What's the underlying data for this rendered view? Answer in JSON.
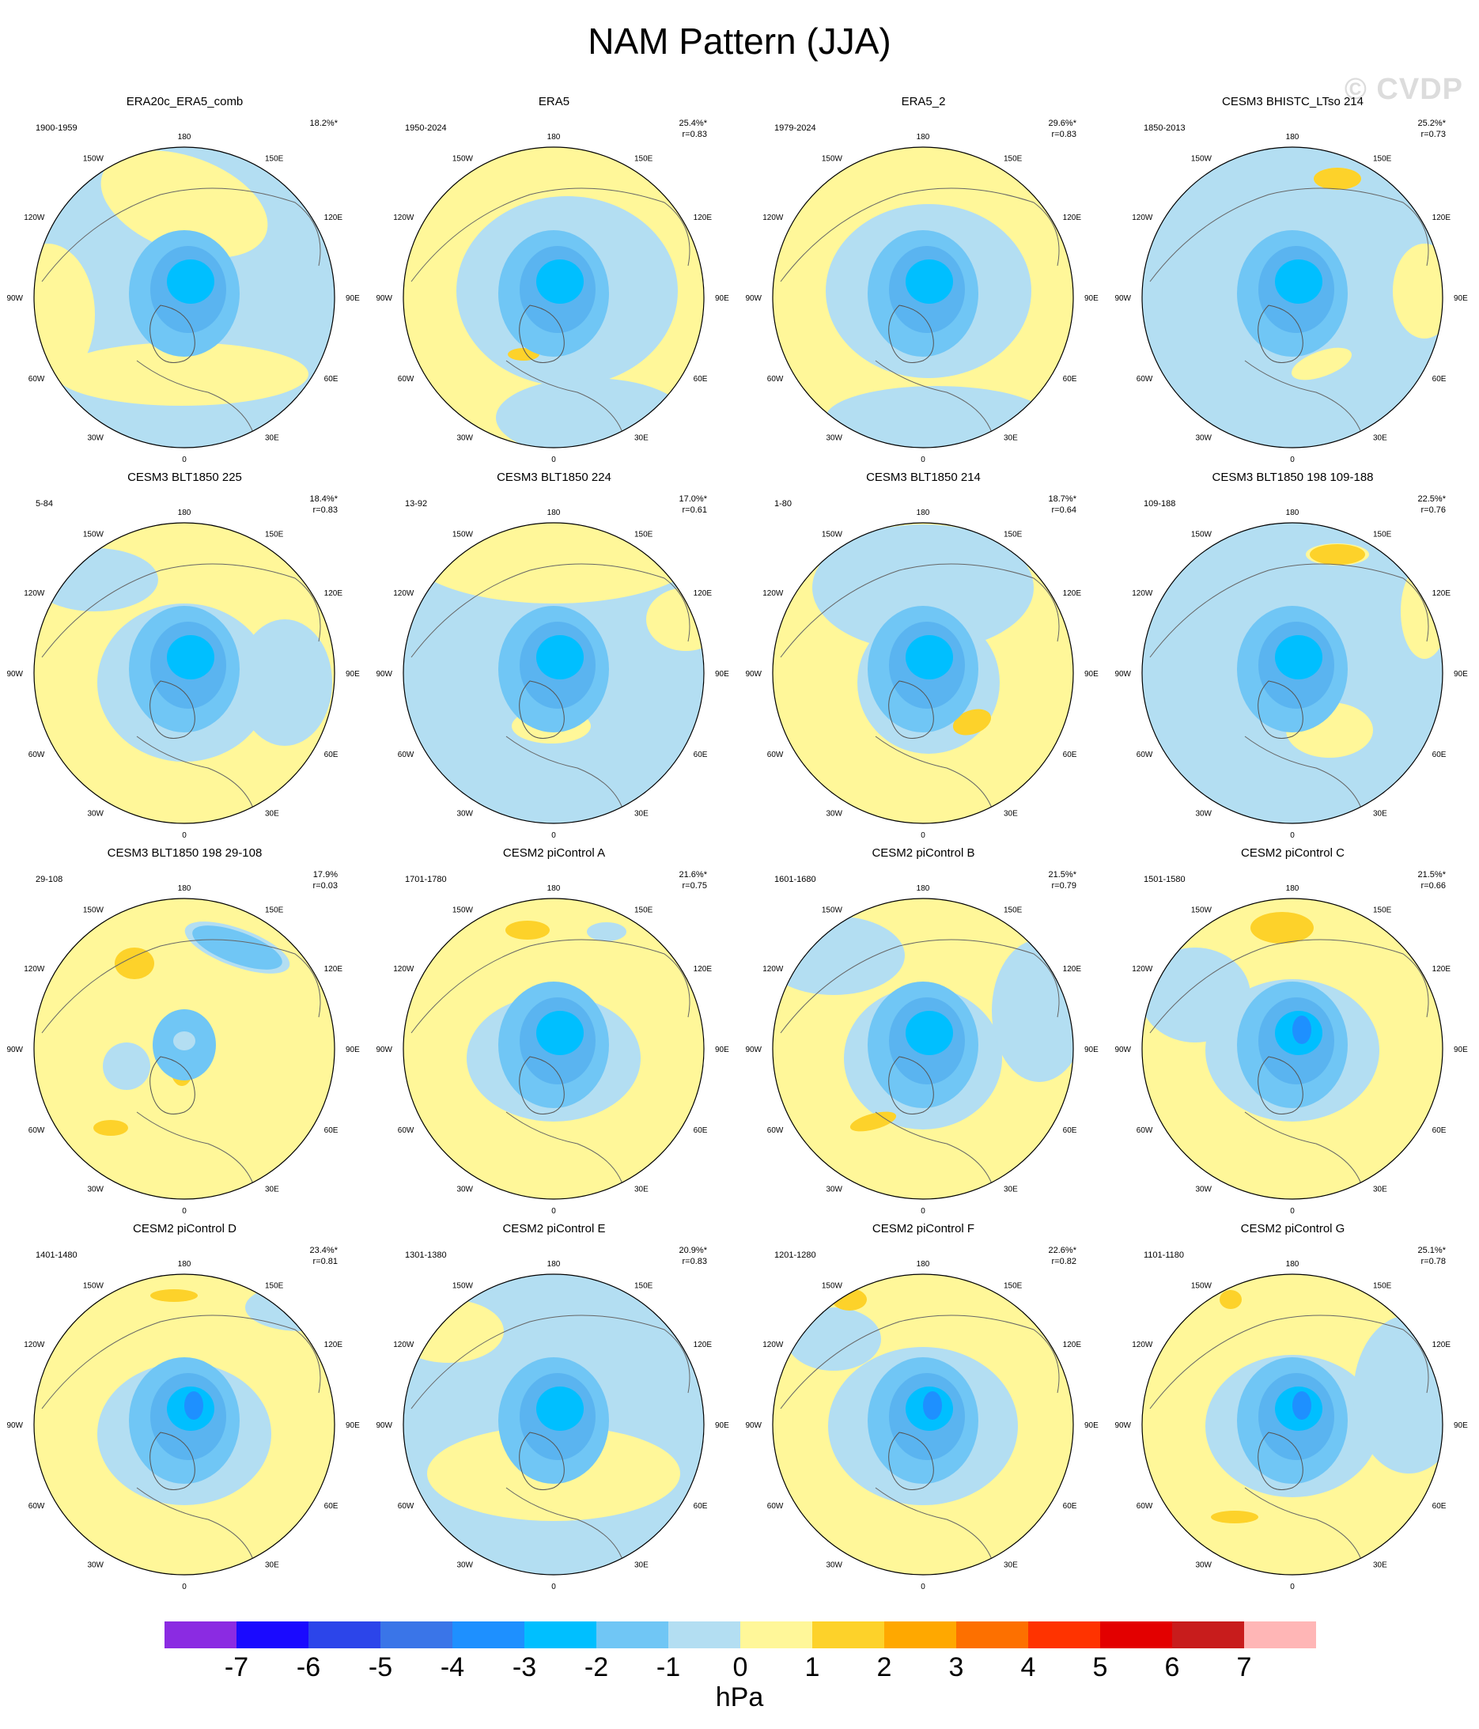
{
  "title": "NAM Pattern (JJA)",
  "watermark": "© CVDP",
  "longitude_labels": [
    "180",
    "150E",
    "120E",
    "90E",
    "60E",
    "30E",
    "0",
    "30W",
    "60W",
    "90W",
    "120W",
    "150W"
  ],
  "icon": "polar-stereographic-map",
  "legend": {
    "units": "hPa",
    "ticks": [
      "-7",
      "-6",
      "-5",
      "-4",
      "-3",
      "-2",
      "-1",
      "0",
      "1",
      "2",
      "3",
      "4",
      "5",
      "6",
      "7"
    ],
    "colors": [
      "#8b2be2",
      "#1a0aff",
      "#2c45ea",
      "#3a75e8",
      "#1e90ff",
      "#00bfff",
      "#70c6f5",
      "#b3def2",
      "#fff799",
      "#fdd22a",
      "#ffa800",
      "#fd7000",
      "#ff3300",
      "#e30000",
      "#c81c1c",
      "#ffb6b6"
    ]
  },
  "panels": [
    {
      "title": "ERA20c_ERA5_comb",
      "years": "1900-1959",
      "pct": "18.2%*",
      "r": ""
    },
    {
      "title": "ERA5",
      "years": "1950-2024",
      "pct": "25.4%*",
      "r": "r=0.83"
    },
    {
      "title": "ERA5_2",
      "years": "1979-2024",
      "pct": "29.6%*",
      "r": "r=0.83"
    },
    {
      "title": "CESM3 BHISTC_LTso 214",
      "years": "1850-2013",
      "pct": "25.2%*",
      "r": "r=0.73"
    },
    {
      "title": "CESM3 BLT1850 225",
      "years": "5-84",
      "pct": "18.4%*",
      "r": "r=0.83"
    },
    {
      "title": "CESM3 BLT1850 224",
      "years": "13-92",
      "pct": "17.0%*",
      "r": "r=0.61"
    },
    {
      "title": "CESM3 BLT1850 214",
      "years": "1-80",
      "pct": "18.7%*",
      "r": "r=0.64"
    },
    {
      "title": "CESM3 BLT1850 198 109-188",
      "years": "109-188",
      "pct": "22.5%*",
      "r": "r=0.76"
    },
    {
      "title": "CESM3 BLT1850 198 29-108",
      "years": "29-108",
      "pct": "17.9%",
      "r": "r=0.03"
    },
    {
      "title": "CESM2 piControl A",
      "years": "1701-1780",
      "pct": "21.6%*",
      "r": "r=0.75"
    },
    {
      "title": "CESM2 piControl B",
      "years": "1601-1680",
      "pct": "21.5%*",
      "r": "r=0.79"
    },
    {
      "title": "CESM2 piControl C",
      "years": "1501-1580",
      "pct": "21.5%*",
      "r": "r=0.66"
    },
    {
      "title": "CESM2 piControl D",
      "years": "1401-1480",
      "pct": "23.4%*",
      "r": "r=0.81"
    },
    {
      "title": "CESM2 piControl E",
      "years": "1301-1380",
      "pct": "20.9%*",
      "r": "r=0.83"
    },
    {
      "title": "CESM2 piControl F",
      "years": "1201-1280",
      "pct": "22.6%*",
      "r": "r=0.82"
    },
    {
      "title": "CESM2 piControl G",
      "years": "1101-1180",
      "pct": "25.1%*",
      "r": "r=0.78"
    }
  ]
}
